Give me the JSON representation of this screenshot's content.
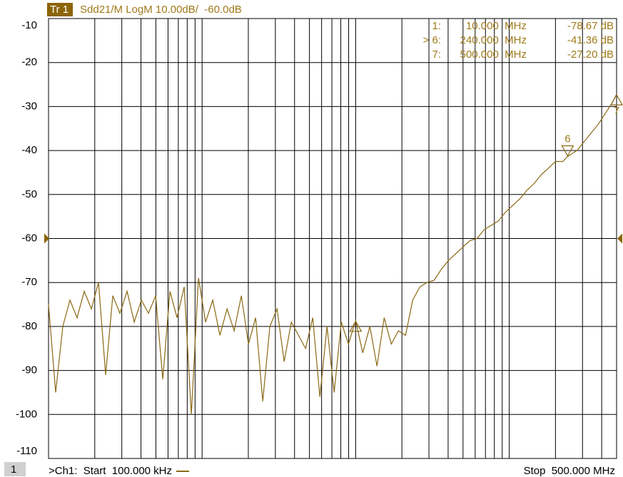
{
  "chart_data": {
    "type": "line",
    "trace_tag": "Tr 1",
    "title": "Sdd21/M LogM 10.00dB/  -60.0dB",
    "xscale": "log",
    "xlim": [
      0.1,
      500
    ],
    "ylim": [
      -110,
      -10
    ],
    "yticks": [
      -10,
      -20,
      -30,
      -40,
      -50,
      -60,
      -70,
      -80,
      -90,
      -100,
      -110
    ],
    "xgrid": [
      0.2,
      0.3,
      0.4,
      0.5,
      0.6,
      0.7,
      0.8,
      0.9,
      1,
      2,
      3,
      4,
      5,
      6,
      7,
      8,
      9,
      10,
      20,
      30,
      40,
      50,
      60,
      70,
      80,
      90,
      100,
      200,
      300,
      400
    ],
    "grid": true,
    "reference_level": -60,
    "color": "#8b6914",
    "x": [
      0.1,
      0.1113,
      0.1239,
      0.1379,
      0.1535,
      0.1708,
      0.1901,
      0.2116,
      0.2355,
      0.2621,
      0.2917,
      0.3247,
      0.3614,
      0.4022,
      0.4477,
      0.4983,
      0.5546,
      0.6172,
      0.687,
      0.7646,
      0.851,
      0.947,
      1.054,
      1.173,
      1.306,
      1.454,
      1.618,
      1.801,
      2.004,
      2.231,
      2.483,
      2.763,
      3.076,
      3.423,
      3.81,
      4.241,
      4.72,
      5.253,
      5.847,
      6.508,
      7.243,
      8.062,
      8.973,
      10,
      11.12,
      12.37,
      13.77,
      15.33,
      17.06,
      18.99,
      21.13,
      23.52,
      26.18,
      29.14,
      32.43,
      36.1,
      40.18,
      44.72,
      49.77,
      55.4,
      61.66,
      68.62,
      76.38,
      85.01,
      94.62,
      105.3,
      117.2,
      130.5,
      145.2,
      161.6,
      179.9,
      200.2,
      222.8,
      240,
      276,
      307.2,
      341.9,
      380.6,
      423.6,
      471.4,
      500
    ],
    "values": [
      -75,
      -95,
      -80,
      -74,
      -78,
      -72,
      -76,
      -70,
      -91,
      -73,
      -77,
      -72,
      -79,
      -74,
      -77,
      -73,
      -92,
      -72,
      -78,
      -71,
      -100,
      -69,
      -79,
      -74,
      -82,
      -76,
      -81,
      -73,
      -84,
      -78,
      -97,
      -80,
      -76,
      -88,
      -79,
      -82,
      -85,
      -78,
      -96,
      -80,
      -95,
      -79,
      -84,
      -78.67,
      -86,
      -80,
      -89,
      -78,
      -84,
      -81,
      -82,
      -74,
      -71,
      -70,
      -69.5,
      -67,
      -65,
      -63.5,
      -62,
      -60.5,
      -60,
      -58,
      -57,
      -56,
      -54,
      -52.5,
      -51,
      -49,
      -47.5,
      -45.5,
      -44,
      -42.5,
      -42.5,
      -41.36,
      -40,
      -38,
      -36,
      -34,
      -31.5,
      -29,
      -27.2
    ],
    "markers": [
      {
        "label": "1:",
        "x": 10,
        "x_label": "10.000  MHz",
        "value": -78.67,
        "value_label": "-78.67 dB"
      },
      {
        "label": "> 6:",
        "tag": "6",
        "x": 240,
        "x_label": "240.000  MHz",
        "value": -41.36,
        "value_label": "-41.36 dB"
      },
      {
        "label": "7:",
        "tag": "7",
        "x": 500,
        "x_label": "500.000  MHz",
        "value": -27.2,
        "value_label": "-27.20 dB"
      }
    ]
  },
  "footer": {
    "channel": "1",
    "start": ">Ch1:  Start  100.000 kHz",
    "stop": "Stop  500.000 MHz"
  }
}
